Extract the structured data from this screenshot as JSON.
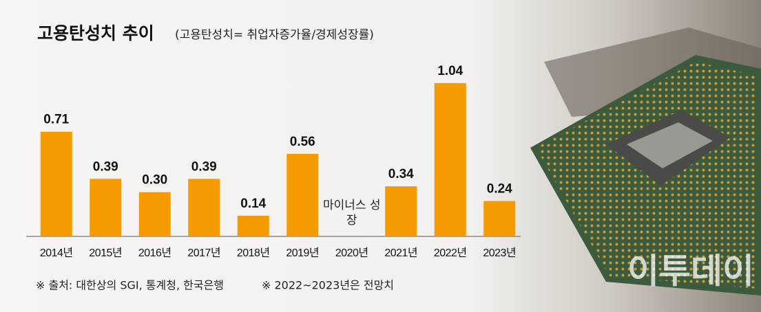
{
  "chart_data": {
    "type": "bar",
    "title": "고용탄성치 추이",
    "subtitle": "(고용탄성치= 취업자증가율/경제성장률)",
    "categories": [
      "2014년",
      "2015년",
      "2016년",
      "2017년",
      "2018년",
      "2019년",
      "2020년",
      "2021년",
      "2022년",
      "2023년"
    ],
    "values": [
      0.71,
      0.39,
      0.3,
      0.39,
      0.14,
      0.56,
      null,
      0.34,
      1.04,
      0.24
    ],
    "value_labels": [
      "0.71",
      "0.39",
      "0.30",
      "0.39",
      "0.14",
      "0.56",
      null,
      "0.34",
      "1.04",
      "0.24"
    ],
    "annotation": "마이너스 성장",
    "color": "#f59b00",
    "ylim": [
      0,
      1.1
    ],
    "source": "※ 출처: 대한상의 SGI, 통계청, 한국은행",
    "note": "※ 2022~2023년은 전망치",
    "watermark": "이투데이"
  }
}
